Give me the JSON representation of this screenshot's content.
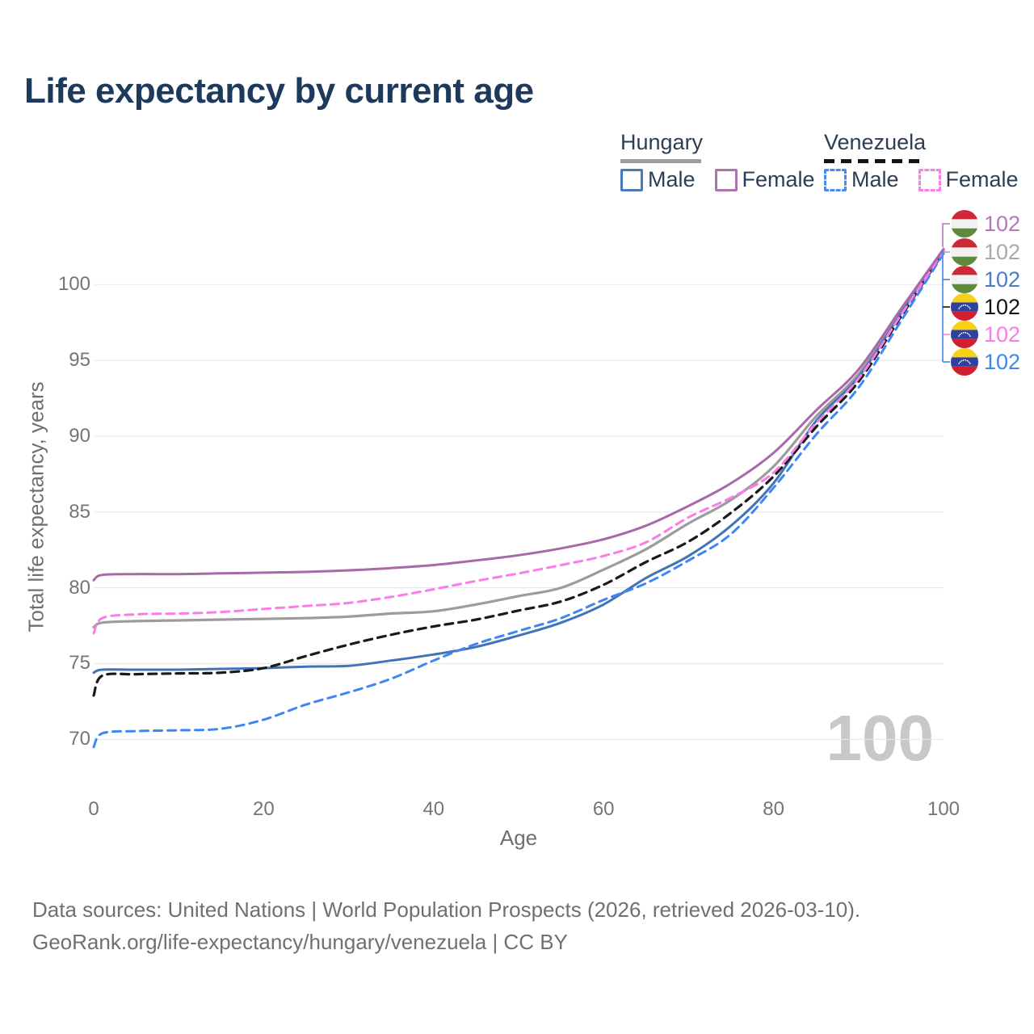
{
  "title": "Life expectancy by current age",
  "legend": {
    "hungary": {
      "label": "Hungary",
      "male": "Male",
      "female": "Female"
    },
    "venezuela": {
      "label": "Venezuela",
      "male": "Male",
      "female": "Female"
    }
  },
  "axes": {
    "x_label": "Age",
    "y_label": "Total life expectancy, years"
  },
  "watermark": {
    "age_label": "100"
  },
  "end_labels": [
    {
      "series": "hu_female",
      "flag": "hungary",
      "value": "102",
      "color": "#b478b6"
    },
    {
      "series": "hu_total",
      "flag": "hungary",
      "value": "102",
      "color": "#a9a9a9"
    },
    {
      "series": "hu_male",
      "flag": "hungary",
      "value": "102",
      "color": "#4a7ccb"
    },
    {
      "series": "ve_total",
      "flag": "venezuela",
      "value": "102",
      "color": "#141414"
    },
    {
      "series": "ve_female",
      "flag": "venezuela",
      "value": "102",
      "color": "#fb7ce7"
    },
    {
      "series": "ve_male",
      "flag": "venezuela",
      "value": "102",
      "color": "#3e86f2"
    }
  ],
  "footer": {
    "line1": "Data sources: United Nations | World Population Prospects (2026, retrieved 2026-03-10).",
    "line2": "GeoRank.org/life-expectancy/hungary/venezuela | CC BY"
  },
  "colors": {
    "title": "#1d3a5c",
    "legend_text": "#2d3e53",
    "axis_text": "#757575",
    "gridline": "#e9e9e9",
    "watermark": "#c8c8c8",
    "hungary_flag": {
      "red": "#ce2939",
      "white": "#f1f1f1",
      "green": "#5d8a3c"
    },
    "venezuela_flag": {
      "yellow": "#f7d117",
      "blue": "#30409f",
      "red": "#ce2030"
    }
  },
  "chart_data": {
    "type": "line",
    "title": "Life expectancy by current age",
    "xlabel": "Age",
    "ylabel": "Total life expectancy, years",
    "x_ticks": [
      0,
      20,
      40,
      60,
      80,
      100
    ],
    "y_ticks": [
      70,
      75,
      80,
      85,
      90,
      95,
      100
    ],
    "xlim": [
      0,
      100
    ],
    "ylim": [
      68.5,
      103
    ],
    "grid": "horizontal-only",
    "legend_position": "top-right",
    "ages": [
      0,
      1,
      5,
      10,
      15,
      20,
      25,
      30,
      35,
      40,
      45,
      50,
      55,
      60,
      65,
      70,
      75,
      80,
      85,
      90,
      95,
      100
    ],
    "draw_order": [
      "hu_total",
      "hu_male",
      "ve_total",
      "ve_male",
      "ve_female",
      "hu_female"
    ],
    "series": [
      {
        "id": "hu_female",
        "name": "Hungary Female",
        "country": "Hungary",
        "sex": "Female",
        "line_style": "solid",
        "color": "#a869a8",
        "end_value_label": "102",
        "values": [
          80.5,
          80.85,
          80.9,
          80.9,
          80.95,
          81.0,
          81.05,
          81.15,
          81.3,
          81.5,
          81.8,
          82.15,
          82.6,
          83.2,
          84.1,
          85.4,
          86.9,
          88.9,
          91.7,
          94.4,
          98.4,
          102.35
        ]
      },
      {
        "id": "hu_total",
        "name": "Hungary",
        "country": "Hungary",
        "sex": "Both",
        "line_style": "solid",
        "color": "#9c9c9c",
        "end_value_label": "102",
        "values": [
          77.4,
          77.7,
          77.8,
          77.85,
          77.9,
          77.95,
          78.0,
          78.1,
          78.3,
          78.45,
          78.9,
          79.45,
          80.0,
          81.2,
          82.55,
          84.25,
          85.8,
          88.0,
          91.3,
          94.1,
          98.2,
          102.3
        ]
      },
      {
        "id": "hu_male",
        "name": "Hungary Male",
        "country": "Hungary",
        "sex": "Male",
        "line_style": "solid",
        "color": "#4273b8",
        "end_value_label": "102",
        "values": [
          74.4,
          74.6,
          74.6,
          74.6,
          74.65,
          74.7,
          74.8,
          74.85,
          75.2,
          75.6,
          76.1,
          76.85,
          77.7,
          78.9,
          80.65,
          82.1,
          84.1,
          86.9,
          91.0,
          93.9,
          98.1,
          102.25
        ]
      },
      {
        "id": "ve_total",
        "name": "Venezuela",
        "country": "Venezuela",
        "sex": "Both",
        "line_style": "dashed",
        "color": "#1a1a1a",
        "end_value_label": "102",
        "values": [
          72.9,
          74.2,
          74.3,
          74.35,
          74.4,
          74.7,
          75.5,
          76.25,
          76.9,
          77.45,
          77.9,
          78.5,
          79.1,
          80.2,
          81.7,
          83.05,
          84.95,
          87.35,
          90.6,
          93.6,
          97.9,
          102.15
        ]
      },
      {
        "id": "ve_female",
        "name": "Venezuela Female",
        "country": "Venezuela",
        "sex": "Female",
        "line_style": "dashed",
        "color": "#fb7ce7",
        "end_value_label": "102",
        "values": [
          77.0,
          78.0,
          78.25,
          78.3,
          78.4,
          78.6,
          78.8,
          79.0,
          79.4,
          79.9,
          80.45,
          80.95,
          81.5,
          82.1,
          83.0,
          84.65,
          85.95,
          87.6,
          90.85,
          93.8,
          98.0,
          102.2
        ]
      },
      {
        "id": "ve_male",
        "name": "Venezuela Male",
        "country": "Venezuela",
        "sex": "Male",
        "line_style": "dashed",
        "color": "#3e86f2",
        "end_value_label": "102",
        "values": [
          69.5,
          70.4,
          70.55,
          70.6,
          70.7,
          71.3,
          72.3,
          73.1,
          74.0,
          75.2,
          76.3,
          77.15,
          78.0,
          79.2,
          80.3,
          81.8,
          83.55,
          86.6,
          90.1,
          93.2,
          97.6,
          102.05
        ]
      }
    ]
  }
}
